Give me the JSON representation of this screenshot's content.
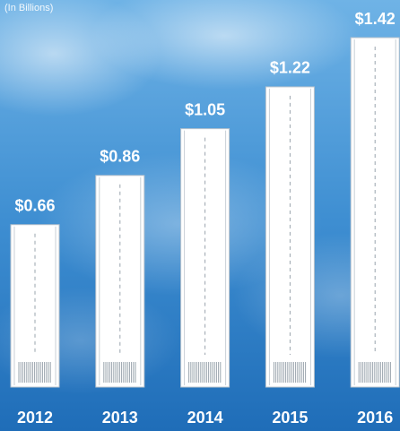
{
  "chart_data": {
    "type": "bar",
    "subtitle": "(In Billions)",
    "categories": [
      "2012",
      "2013",
      "2014",
      "2015",
      "2016"
    ],
    "values": [
      0.66,
      0.86,
      1.05,
      1.22,
      1.42
    ],
    "value_labels": [
      "$0.66",
      "$0.86",
      "$1.05",
      "$1.22",
      "$1.42"
    ],
    "color": "#ffffff"
  }
}
